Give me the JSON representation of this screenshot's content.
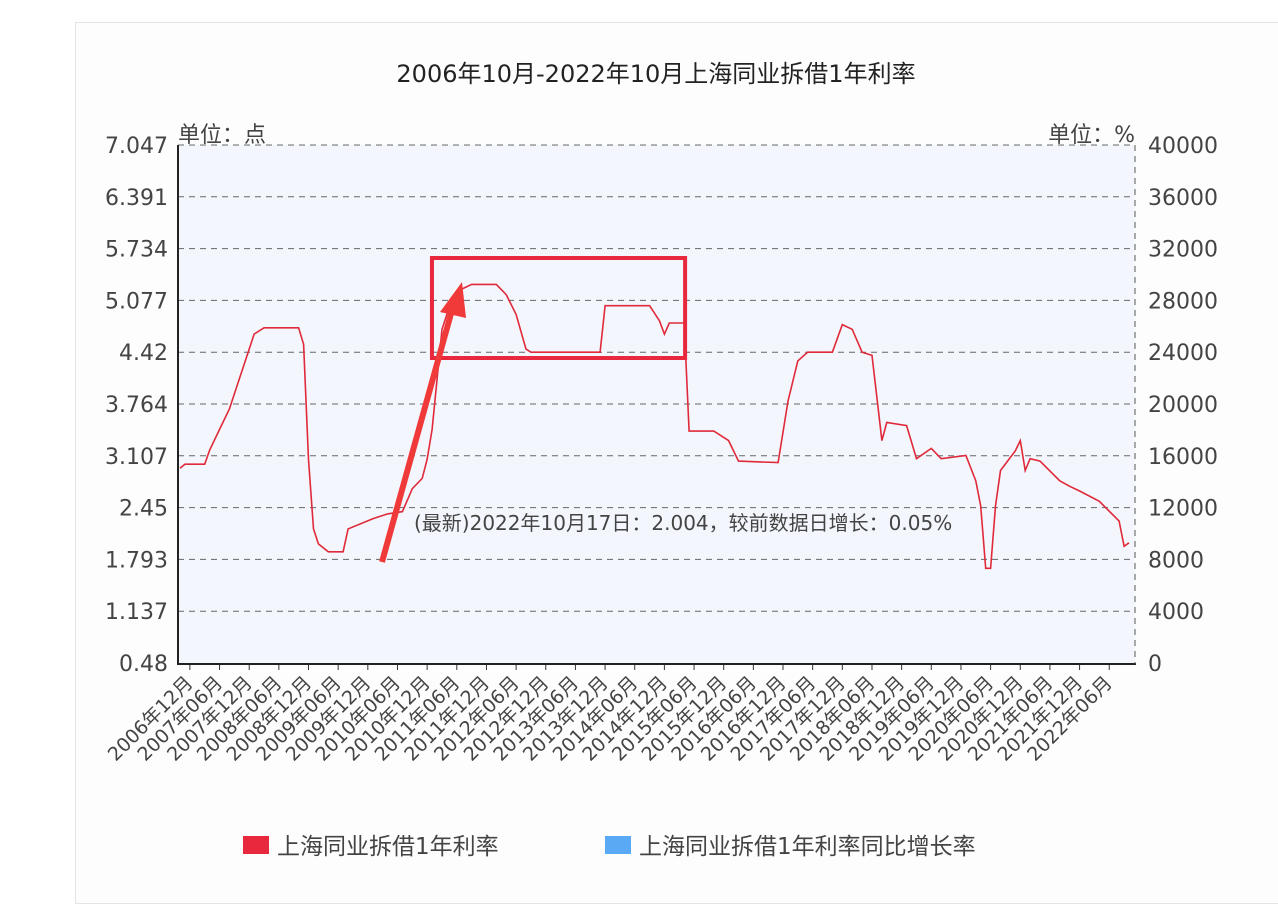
{
  "chart_data": {
    "type": "line",
    "title": "2006年10月-2022年10月上海同业拆借1年利率",
    "left_unit": "单位：点",
    "right_unit": "单位：%",
    "y_left": {
      "ticks": [
        "7.047",
        "6.391",
        "5.734",
        "5.077",
        "4.42",
        "3.764",
        "3.107",
        "2.45",
        "1.793",
        "1.137",
        "0.48"
      ],
      "range": [
        0.48,
        7.047
      ]
    },
    "y_right": {
      "ticks": [
        "40000",
        "36000",
        "32000",
        "28000",
        "24000",
        "20000",
        "16000",
        "12000",
        "8000",
        "4000",
        "0"
      ],
      "range": [
        0,
        40000
      ]
    },
    "x_range": [
      "2006-10",
      "2022-10"
    ],
    "x_ticks": [
      "2006年12月",
      "2007年06月",
      "2007年12月",
      "2008年06月",
      "2008年12月",
      "2009年06月",
      "2009年12月",
      "2010年06月",
      "2010年12月",
      "2011年06月",
      "2011年12月",
      "2012年06月",
      "2012年12月",
      "2013年06月",
      "2013年12月",
      "2014年06月",
      "2014年12月",
      "2015年06月",
      "2015年12月",
      "2016年06月",
      "2016年12月",
      "2017年06月",
      "2017年12月",
      "2018年06月",
      "2018年12月",
      "2019年06月",
      "2019年12月",
      "2020年06月",
      "2020年12月",
      "2021年06月",
      "2021年12月",
      "2022年06月"
    ],
    "grid": true,
    "legend_placement": "bottom",
    "series": [
      {
        "name": "上海同业拆借1年利率",
        "color": "#e8283c",
        "axis": "left",
        "points": [
          [
            "2006-10",
            2.95
          ],
          [
            "2006-11",
            3.0
          ],
          [
            "2007-03",
            3.0
          ],
          [
            "2007-04",
            3.18
          ],
          [
            "2007-06",
            3.44
          ],
          [
            "2007-08",
            3.7
          ],
          [
            "2007-10",
            4.08
          ],
          [
            "2007-12",
            4.46
          ],
          [
            "2008-01",
            4.65
          ],
          [
            "2008-03",
            4.73
          ],
          [
            "2008-10",
            4.73
          ],
          [
            "2008-11",
            4.52
          ],
          [
            "2008-12",
            3.06
          ],
          [
            "2009-01",
            2.18
          ],
          [
            "2009-02",
            1.99
          ],
          [
            "2009-04",
            1.89
          ],
          [
            "2009-07",
            1.89
          ],
          [
            "2009-08",
            2.18
          ],
          [
            "2010-01",
            2.31
          ],
          [
            "2010-04",
            2.37
          ],
          [
            "2010-07",
            2.4
          ],
          [
            "2010-09",
            2.69
          ],
          [
            "2010-11",
            2.82
          ],
          [
            "2010-12",
            3.06
          ],
          [
            "2011-01",
            3.44
          ],
          [
            "2011-03",
            4.71
          ],
          [
            "2011-05",
            5.09
          ],
          [
            "2011-07",
            5.22
          ],
          [
            "2011-09",
            5.28
          ],
          [
            "2012-02",
            5.28
          ],
          [
            "2012-04",
            5.15
          ],
          [
            "2012-06",
            4.9
          ],
          [
            "2012-08",
            4.46
          ],
          [
            "2012-09",
            4.42
          ],
          [
            "2013-11",
            4.42
          ],
          [
            "2013-12",
            5.01
          ],
          [
            "2014-09",
            5.01
          ],
          [
            "2014-11",
            4.82
          ],
          [
            "2014-12",
            4.65
          ],
          [
            "2015-01",
            4.79
          ],
          [
            "2015-04",
            4.79
          ],
          [
            "2015-05",
            3.42
          ],
          [
            "2015-10",
            3.42
          ],
          [
            "2016-01",
            3.3
          ],
          [
            "2016-03",
            3.04
          ],
          [
            "2016-11",
            3.02
          ],
          [
            "2017-01",
            3.8
          ],
          [
            "2017-03",
            4.31
          ],
          [
            "2017-05",
            4.42
          ],
          [
            "2017-10",
            4.42
          ],
          [
            "2017-12",
            4.77
          ],
          [
            "2018-02",
            4.71
          ],
          [
            "2018-04",
            4.42
          ],
          [
            "2018-06",
            4.38
          ],
          [
            "2018-08",
            3.3
          ],
          [
            "2018-09",
            3.53
          ],
          [
            "2019-01",
            3.49
          ],
          [
            "2019-03",
            3.07
          ],
          [
            "2019-06",
            3.2
          ],
          [
            "2019-08",
            3.07
          ],
          [
            "2020-01",
            3.11
          ],
          [
            "2020-03",
            2.79
          ],
          [
            "2020-04",
            2.47
          ],
          [
            "2020-05",
            1.68
          ],
          [
            "2020-06",
            1.68
          ],
          [
            "2020-07",
            2.47
          ],
          [
            "2020-08",
            2.92
          ],
          [
            "2020-11",
            3.17
          ],
          [
            "2020-12",
            3.3
          ],
          [
            "2021-01",
            2.92
          ],
          [
            "2021-02",
            3.07
          ],
          [
            "2021-04",
            3.04
          ],
          [
            "2021-08",
            2.79
          ],
          [
            "2021-10",
            2.72
          ],
          [
            "2021-12",
            2.66
          ],
          [
            "2022-04",
            2.53
          ],
          [
            "2022-08",
            2.28
          ],
          [
            "2022-09",
            1.96
          ],
          [
            "2022-10",
            2.004
          ]
        ]
      },
      {
        "name": "上海同业拆借1年利率同比增长率",
        "color": "#5aa9f5",
        "axis": "right",
        "points": []
      }
    ],
    "annotation": "(最新)2022年10月17日：2.004，较前数据日增长：0.05%",
    "highlight_box_color": "#e8283c",
    "highlight_range": [
      "2011-03",
      "2015-05"
    ]
  }
}
